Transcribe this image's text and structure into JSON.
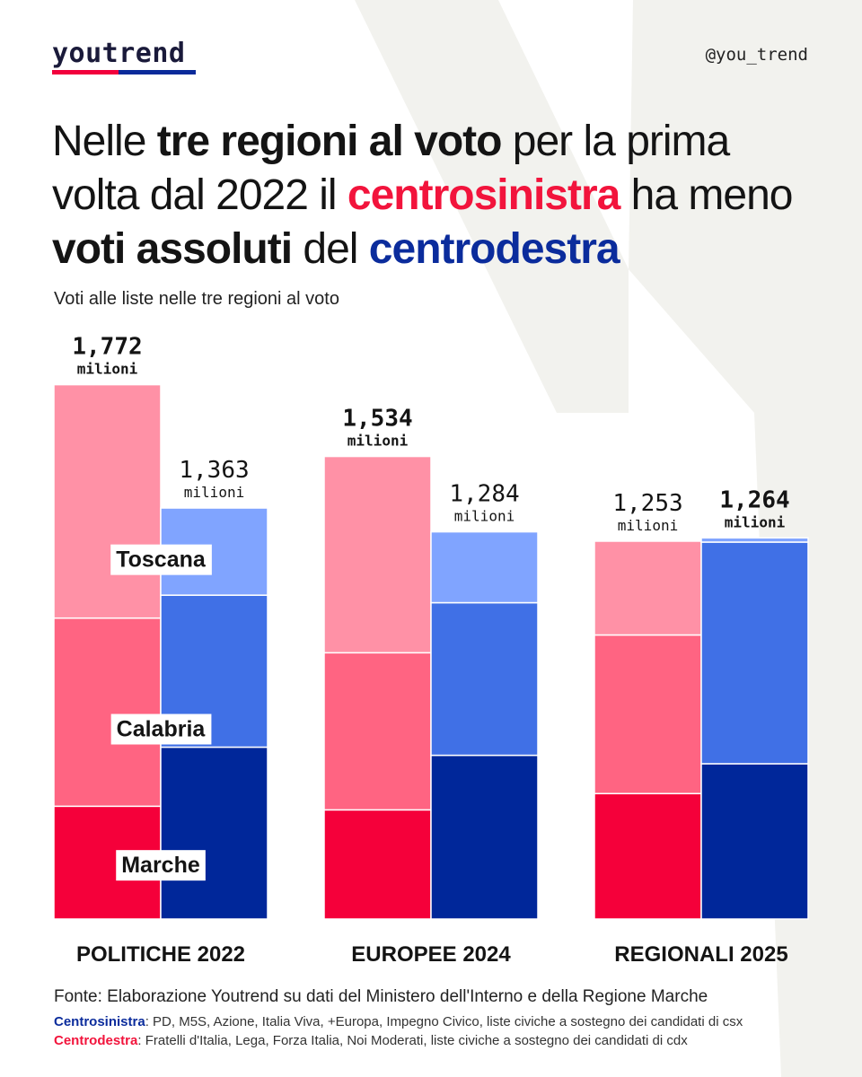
{
  "header": {
    "logo": "youtrend",
    "handle": "@you_trend"
  },
  "title": {
    "part1": "Nelle ",
    "part2": "tre regioni al voto",
    "part3": " per la prima volta dal 2022 il ",
    "part4": "centrosinistra",
    "part5": " ha meno ",
    "part6": "voti assoluti",
    "part7": " del ",
    "part8": "centrodestra"
  },
  "subtitle": "Voti alle liste nelle tre regioni al voto",
  "colors": {
    "csx_toscana": "#ff91a6",
    "csx_calabria": "#ff6482",
    "csx_marche": "#f5003a",
    "cdx_toscana": "#80a4ff",
    "cdx_calabria": "#4070e6",
    "cdx_marche": "#00279a",
    "background_shape": "#f2f2ee"
  },
  "chart_data": {
    "type": "bar",
    "stacked": true,
    "unit": "milioni",
    "categories": [
      "POLITICHE 2022",
      "EUROPEE 2024",
      "REGIONALI 2025"
    ],
    "regions": [
      "Toscana",
      "Calabria",
      "Marche"
    ],
    "series": [
      {
        "name": "Centrosinistra",
        "totals": [
          "1,772",
          "1,534",
          "1,253"
        ],
        "totals_values": [
          1.772,
          1.534,
          1.253
        ],
        "segments": {
          "Marche": [
            0.374,
            0.362,
            0.416
          ],
          "Calabria": [
            0.624,
            0.521,
            0.526
          ],
          "Toscana": [
            0.774,
            0.651,
            0.311
          ]
        }
      },
      {
        "name": "Centrodestra",
        "totals": [
          "1,363",
          "1,284",
          "1,264"
        ],
        "totals_values": [
          1.363,
          1.284,
          1.264
        ],
        "segments": {
          "Marche": [
            0.57,
            0.543,
            0.515
          ],
          "Calabria": [
            0.504,
            0.506,
            0.735
          ],
          "Toscana": [
            0.289,
            0.235,
            0.014
          ]
        }
      }
    ],
    "region_labels_shown_on": "POLITICHE 2022",
    "emphasis": "larger total shown in bold"
  },
  "footer": {
    "source": "Fonte: Elaborazione Youtrend su dati del Ministero dell'Interno e della Regione Marche",
    "csx_label": "Centrosinistra",
    "csx_text": ": PD, M5S, Azione, Italia Viva, +Europa, Impegno Civico, liste civiche a sostegno dei candidati di csx",
    "cdx_label": "Centrodestra",
    "cdx_text": ": Fratelli d'Italia, Lega, Forza Italia, Noi Moderati, liste civiche a sostegno dei candidati di cdx"
  }
}
